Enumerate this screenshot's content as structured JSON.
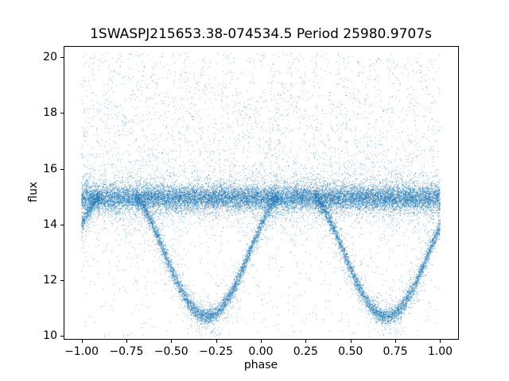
{
  "chart_data": {
    "type": "scatter",
    "title": "1SWASPJ215653.38-074534.5 Period 25980.9707s",
    "xlabel": "phase",
    "ylabel": "flux",
    "xlim": [
      -1.1,
      1.1
    ],
    "ylim": [
      9.9,
      20.4
    ],
    "x_tick_values": [
      -1.0,
      -0.75,
      -0.5,
      -0.25,
      0.0,
      0.25,
      0.5,
      0.75,
      1.0
    ],
    "x_ticks": [
      "−1.00",
      "−0.75",
      "−0.50",
      "−0.25",
      "0.00",
      "0.25",
      "0.50",
      "0.75",
      "1.00"
    ],
    "y_tick_values": [
      10,
      12,
      14,
      16,
      18,
      20
    ],
    "y_ticks": [
      "10",
      "12",
      "14",
      "16",
      "18",
      "20"
    ],
    "grid": false,
    "legend": "none",
    "point_color": "#1f77b4",
    "point_alpha": 0.55,
    "note": "Folded eclipsing-binary light curve of tens of thousands of photometric points: a dense horizontal band near flux 15 across all phases, deep eclipse dips reaching flux ~10.7 centered at phase -0.30 and +0.70 (half-width ~0.40, with a wrapped eclipse tail at phase -1.3), plus sparse noise scatter up to flux ~20 and down to ~10.",
    "generation": {
      "seed": 7,
      "band": {
        "n": 18000,
        "x_range": [
          -1,
          1
        ],
        "center": 14.95,
        "sigma_core": 0.22,
        "sigma_tail": 0.55,
        "tail_frac": 0.18
      },
      "eclipses": {
        "centers": [
          -1.3,
          -0.3,
          0.7
        ],
        "n_per": 4500,
        "half_width": 0.4,
        "baseline": 14.95,
        "depth": 4.25,
        "sigma_core": 0.14,
        "sigma_tail": 0.38,
        "tail_frac": 0.18,
        "profile_exp": 1.5
      },
      "scatter_above": {
        "n": 2300,
        "x_range": [
          -1,
          1
        ],
        "y_range": [
          15.35,
          20.15
        ],
        "bias": 1.3
      },
      "scatter_below": {
        "n": 800,
        "x_range": [
          -1,
          1
        ],
        "y_range": [
          9.95,
          14.45
        ],
        "bias": 1.5
      }
    }
  }
}
